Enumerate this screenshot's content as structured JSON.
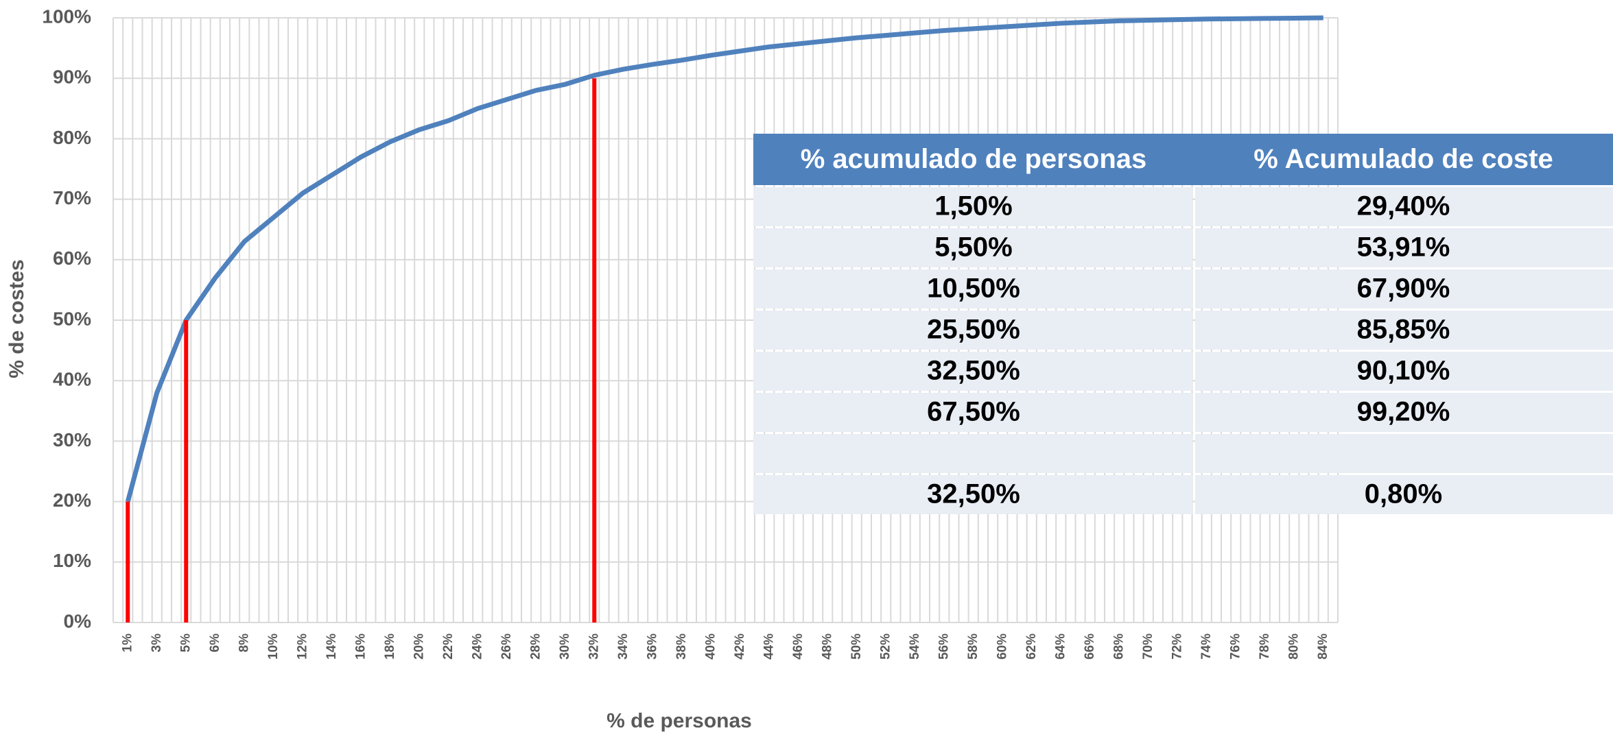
{
  "chart_data": {
    "type": "line",
    "x_axis_label": "% de personas",
    "y_axis_label": "% de costes",
    "categories": [
      "1%",
      "3%",
      "5%",
      "6%",
      "8%",
      "10%",
      "12%",
      "14%",
      "16%",
      "18%",
      "20%",
      "22%",
      "24%",
      "26%",
      "28%",
      "30%",
      "32%",
      "34%",
      "36%",
      "38%",
      "40%",
      "42%",
      "44%",
      "46%",
      "48%",
      "50%",
      "52%",
      "54%",
      "56%",
      "58%",
      "60%",
      "62%",
      "64%",
      "66%",
      "68%",
      "70%",
      "72%",
      "74%",
      "76%",
      "78%",
      "80%",
      "84%"
    ],
    "series": [
      {
        "color": "#4f81bd",
        "values": [
          20,
          38,
          50,
          57,
          63,
          67,
          71,
          74,
          77,
          79.5,
          81.5,
          83,
          85,
          86.5,
          88,
          89,
          90.5,
          91.5,
          92.3,
          93,
          93.8,
          94.5,
          95.2,
          95.7,
          96.2,
          96.7,
          97.1,
          97.5,
          97.9,
          98.2,
          98.5,
          98.8,
          99.1,
          99.3,
          99.5,
          99.6,
          99.7,
          99.8,
          99.85,
          99.9,
          99.95,
          100
        ]
      }
    ],
    "reference_lines": [
      {
        "x": "1%",
        "value": 20,
        "color": "#ff0000"
      },
      {
        "x": "5%",
        "value": 50,
        "color": "#ff0000"
      },
      {
        "x": "32%",
        "value": 90,
        "color": "#ff0000"
      }
    ],
    "ylim": [
      0,
      100
    ],
    "yticks": [
      {
        "value": 0,
        "label": "0%"
      },
      {
        "value": 10,
        "label": "10%"
      },
      {
        "value": 20,
        "label": "20%"
      },
      {
        "value": 30,
        "label": "30%"
      },
      {
        "value": 40,
        "label": "40%"
      },
      {
        "value": 50,
        "label": "50%"
      },
      {
        "value": 60,
        "label": "60%"
      },
      {
        "value": 70,
        "label": "70%"
      },
      {
        "value": 80,
        "label": "80%"
      },
      {
        "value": 90,
        "label": "90%"
      },
      {
        "value": 100,
        "label": "100%"
      }
    ],
    "grid": true
  },
  "table": {
    "columns": [
      "% acumulado de personas",
      "% Acumulado de coste"
    ],
    "rows": [
      [
        "1,50%",
        "29,40%"
      ],
      [
        "5,50%",
        "53,91%"
      ],
      [
        "10,50%",
        "67,90%"
      ],
      [
        "25,50%",
        "85,85%"
      ],
      [
        "32,50%",
        "90,10%"
      ],
      [
        "67,50%",
        "99,20%"
      ]
    ],
    "footer_row": [
      "32,50%",
      "0,80%"
    ]
  }
}
